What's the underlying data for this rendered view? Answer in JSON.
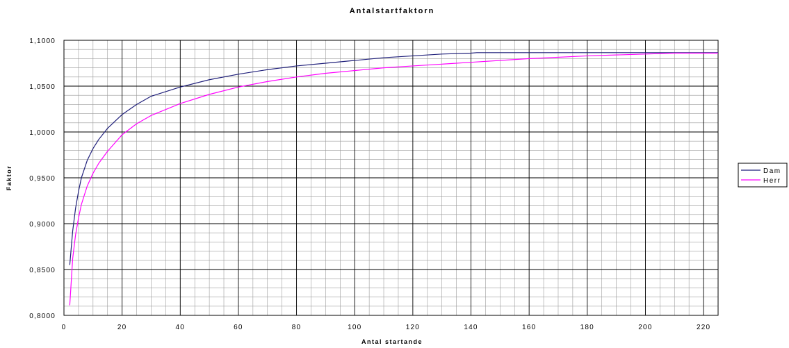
{
  "chart_data": {
    "type": "line",
    "title": "Antalstartfaktorn",
    "xlabel": "Antal startande",
    "ylabel": "Faktor",
    "xlim": [
      0,
      225
    ],
    "ylim": [
      0.8,
      1.1
    ],
    "x_ticks": [
      "0",
      "20",
      "40",
      "60",
      "80",
      "100",
      "120",
      "140",
      "160",
      "180",
      "200",
      "220"
    ],
    "y_ticks": [
      "0,8000",
      "0,8500",
      "0,9000",
      "0,9500",
      "1,0000",
      "1,0500",
      "1,1000"
    ],
    "grid": true,
    "legend_position": "right",
    "series": [
      {
        "name": "Dam",
        "color": "#1f1f7a",
        "x": [
          2,
          3,
          4,
          5,
          6,
          8,
          10,
          12,
          15,
          20,
          25,
          30,
          40,
          50,
          60,
          70,
          80,
          90,
          100,
          110,
          120,
          130,
          140,
          142,
          160,
          180,
          200,
          225
        ],
        "y": [
          0.855,
          0.892,
          0.917,
          0.935,
          0.95,
          0.969,
          0.982,
          0.992,
          1.004,
          1.019,
          1.03,
          1.039,
          1.049,
          1.057,
          1.063,
          1.068,
          1.072,
          1.075,
          1.078,
          1.081,
          1.083,
          1.085,
          1.086,
          1.0865,
          1.0865,
          1.0865,
          1.0865,
          1.0865
        ]
      },
      {
        "name": "Herr",
        "color": "#ff00ff",
        "x": [
          2,
          3,
          4,
          5,
          6,
          8,
          10,
          12,
          15,
          20,
          25,
          30,
          40,
          50,
          60,
          70,
          80,
          90,
          100,
          110,
          120,
          140,
          160,
          180,
          200,
          210,
          225
        ],
        "y": [
          0.811,
          0.862,
          0.888,
          0.906,
          0.921,
          0.941,
          0.955,
          0.966,
          0.979,
          0.997,
          1.009,
          1.018,
          1.031,
          1.041,
          1.049,
          1.055,
          1.06,
          1.064,
          1.067,
          1.07,
          1.072,
          1.076,
          1.08,
          1.083,
          1.085,
          1.086,
          1.086
        ]
      }
    ]
  }
}
